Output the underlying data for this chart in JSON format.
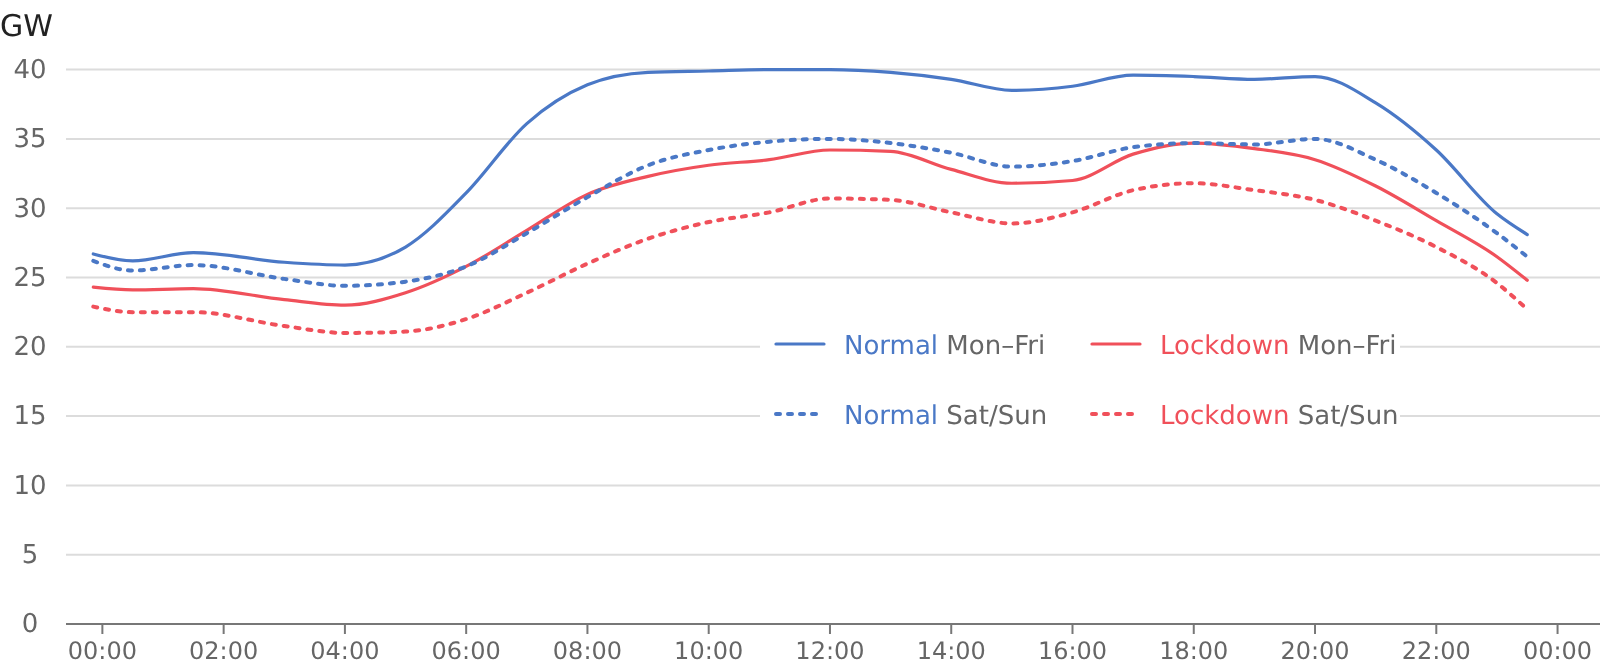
{
  "chart_data": {
    "type": "line",
    "ylabel": "GW",
    "x": [
      -0.15,
      0.5,
      1.5,
      3,
      4,
      5,
      6,
      7,
      8,
      9,
      10,
      11,
      12,
      13,
      14,
      15,
      16,
      17,
      18,
      19,
      20,
      21,
      22,
      23,
      23.5
    ],
    "series": [
      {
        "name": "Normal Mon–Fri",
        "color": "#4a78c6",
        "line_style": "solid",
        "values": [
          26.7,
          26.2,
          26.8,
          26.1,
          25.9,
          27.2,
          31.1,
          36.1,
          38.9,
          39.8,
          39.9,
          40,
          40,
          39.8,
          39.3,
          38.5,
          38.8,
          39.6,
          39.5,
          39.3,
          39.5,
          37.6,
          34.2,
          29.6,
          28.1
        ]
      },
      {
        "name": "Lockdown Mon–Fri",
        "color": "#f0505a",
        "line_style": "solid",
        "values": [
          24.3,
          24.1,
          24.2,
          23.4,
          23.0,
          23.9,
          25.8,
          28.4,
          31.0,
          32.3,
          33.1,
          33.5,
          34.2,
          34.1,
          32.8,
          31.8,
          32.0,
          33.9,
          34.7,
          34.3,
          33.5,
          31.6,
          29.1,
          26.5,
          24.8
        ]
      },
      {
        "name": "Normal Sat/Sun",
        "color": "#4a78c6",
        "line_style": "dotted",
        "values": [
          26.2,
          25.5,
          25.9,
          24.9,
          24.4,
          24.7,
          25.8,
          28.2,
          30.8,
          33.1,
          34.2,
          34.8,
          35.0,
          34.7,
          34.0,
          33.0,
          33.4,
          34.4,
          34.7,
          34.6,
          35.0,
          33.5,
          31.1,
          28.2,
          26.5
        ]
      },
      {
        "name": "Lockdown Sat/Sun",
        "color": "#f0505a",
        "line_style": "dotted",
        "values": [
          22.9,
          22.5,
          22.5,
          21.5,
          21.0,
          21.1,
          22.0,
          23.9,
          26.0,
          27.8,
          29.0,
          29.7,
          30.7,
          30.6,
          29.7,
          28.9,
          29.7,
          31.3,
          31.8,
          31.3,
          30.6,
          29.1,
          27.2,
          24.6,
          22.7
        ]
      }
    ],
    "xlim": [
      -0.6,
      24.7
    ],
    "xticks": [
      {
        "value": 0,
        "label": "00:00"
      },
      {
        "value": 2,
        "label": "02:00"
      },
      {
        "value": 4,
        "label": "04:00"
      },
      {
        "value": 6,
        "label": "06:00"
      },
      {
        "value": 8,
        "label": "08:00"
      },
      {
        "value": 10,
        "label": "10:00"
      },
      {
        "value": 12,
        "label": "12:00"
      },
      {
        "value": 14,
        "label": "14:00"
      },
      {
        "value": 16,
        "label": "16:00"
      },
      {
        "value": 18,
        "label": "18:00"
      },
      {
        "value": 20,
        "label": "20:00"
      },
      {
        "value": 22,
        "label": "22:00"
      },
      {
        "value": 24,
        "label": "00:00"
      }
    ],
    "ylim": [
      0,
      40
    ],
    "yticks": [
      0,
      5,
      10,
      15,
      20,
      25,
      30,
      35,
      40
    ],
    "grid": "y",
    "legend": "center",
    "marker": "none"
  }
}
